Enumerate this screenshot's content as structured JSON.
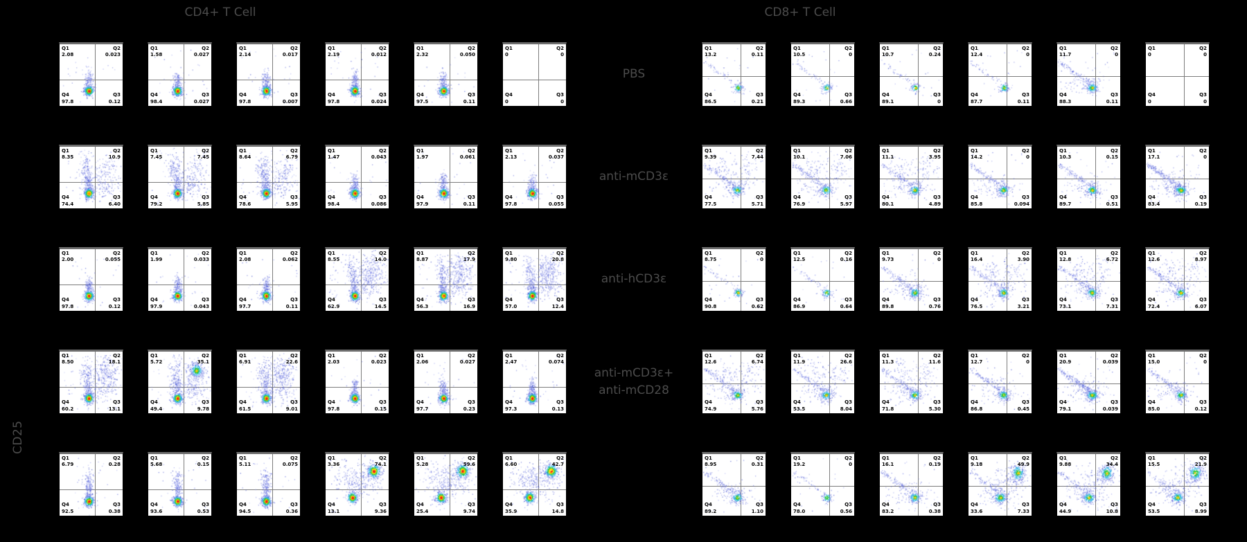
{
  "chart_data": {
    "type": "scatter",
    "subtype": "flow-cytometry-pseudocolor-quadrant-grid",
    "y_axis_label": "CD25",
    "grid": {
      "rows": 5,
      "cols_per_panel": 6,
      "background": "#000000",
      "plot_background": "#ffffff"
    },
    "legend_position": "none",
    "quadrant_label_order": [
      "Q1",
      "Q2",
      "Q4",
      "Q3"
    ],
    "row_labels": [
      {
        "lines": [
          "PBS"
        ]
      },
      {
        "lines": [
          "anti-mCD3ε"
        ]
      },
      {
        "lines": [
          "anti-hCD3ε"
        ]
      },
      {
        "lines": [
          "anti-mCD3ε+",
          "anti-mCD28"
        ]
      },
      {
        "lines": []
      }
    ],
    "colors": {
      "title_text": "#4c4c4c",
      "quadrant_text": "#000000",
      "density_low": "#3f4ccc",
      "density_mid": "#2fc83c",
      "density_high": "#ffe400",
      "density_peak": "#ef1f1b"
    },
    "panels": [
      {
        "title": "CD4+ T Cell",
        "rows": [
          [
            {
              "q1": "2.08",
              "q2": "0.023",
              "q4": "97.8",
              "q3": "0.12",
              "viz": "col"
            },
            {
              "q1": "1.58",
              "q2": "0.027",
              "q4": "98.4",
              "q3": "0.027",
              "viz": "col"
            },
            {
              "q1": "2.14",
              "q2": "0.017",
              "q4": "97.8",
              "q3": "0.007",
              "viz": "col"
            },
            {
              "q1": "2.19",
              "q2": "0.012",
              "q4": "97.8",
              "q3": "0.024",
              "viz": "col"
            },
            {
              "q1": "2.32",
              "q2": "0.050",
              "q4": "97.5",
              "q3": "0.11",
              "viz": "col"
            },
            {
              "q1": "0",
              "q2": "0",
              "q4": "0",
              "q3": "0",
              "viz": "none"
            }
          ],
          [
            {
              "q1": "8.35",
              "q2": "10.9",
              "q4": "74.4",
              "q3": "6.40",
              "viz": "colU"
            },
            {
              "q1": "7.45",
              "q2": "7.45",
              "q4": "79.2",
              "q3": "5.85",
              "viz": "colU"
            },
            {
              "q1": "8.64",
              "q2": "6.79",
              "q4": "78.6",
              "q3": "5.95",
              "viz": "colU"
            },
            {
              "q1": "1.47",
              "q2": "0.043",
              "q4": "98.4",
              "q3": "0.086",
              "viz": "col"
            },
            {
              "q1": "1.97",
              "q2": "0.061",
              "q4": "97.9",
              "q3": "0.11",
              "viz": "col"
            },
            {
              "q1": "2.13",
              "q2": "0.037",
              "q4": "97.8",
              "q3": "0.055",
              "viz": "col"
            }
          ],
          [
            {
              "q1": "2.00",
              "q2": "0.055",
              "q4": "97.8",
              "q3": "0.12",
              "viz": "col"
            },
            {
              "q1": "1.99",
              "q2": "0.033",
              "q4": "97.9",
              "q3": "0.043",
              "viz": "col"
            },
            {
              "q1": "2.08",
              "q2": "0.062",
              "q4": "97.7",
              "q3": "0.11",
              "viz": "col"
            },
            {
              "q1": "8.55",
              "q2": "14.0",
              "q4": "62.9",
              "q3": "14.5",
              "viz": "colU2"
            },
            {
              "q1": "8.87",
              "q2": "17.9",
              "q4": "56.3",
              "q3": "16.9",
              "viz": "colU2"
            },
            {
              "q1": "9.80",
              "q2": "20.8",
              "q4": "57.0",
              "q3": "12.4",
              "viz": "colU2"
            }
          ],
          [
            {
              "q1": "8.50",
              "q2": "18.1",
              "q4": "60.2",
              "q3": "13.1",
              "viz": "colU2"
            },
            {
              "q1": "5.72",
              "q2": "35.1",
              "q4": "49.4",
              "q3": "9.78",
              "viz": "colU2h"
            },
            {
              "q1": "6.91",
              "q2": "22.6",
              "q4": "61.5",
              "q3": "9.01",
              "viz": "colU2"
            },
            {
              "q1": "2.03",
              "q2": "0.023",
              "q4": "97.8",
              "q3": "0.15",
              "viz": "col"
            },
            {
              "q1": "2.06",
              "q2": "0.027",
              "q4": "97.7",
              "q3": "0.23",
              "viz": "col"
            },
            {
              "q1": "2.47",
              "q2": "0.074",
              "q4": "97.3",
              "q3": "0.13",
              "viz": "col"
            }
          ],
          [
            {
              "q1": "6.79",
              "q2": "0.28",
              "q4": "92.5",
              "q3": "0.38",
              "viz": "colT"
            },
            {
              "q1": "5.68",
              "q2": "0.15",
              "q4": "93.6",
              "q3": "0.53",
              "viz": "colT"
            },
            {
              "q1": "5.11",
              "q2": "0.075",
              "q4": "94.5",
              "q3": "0.36",
              "viz": "colT"
            },
            {
              "q1": "3.36",
              "q2": "74.1",
              "q4": "13.1",
              "q3": "9.36",
              "viz": "colQ2"
            },
            {
              "q1": "5.28",
              "q2": "59.6",
              "q4": "25.4",
              "q3": "9.74",
              "viz": "colQ2"
            },
            {
              "q1": "6.60",
              "q2": "42.7",
              "q4": "35.9",
              "q3": "14.8",
              "viz": "colQ2"
            }
          ]
        ]
      },
      {
        "title": "CD8+ T Cell",
        "rows": [
          [
            {
              "q1": "13.2",
              "q2": "0.11",
              "q4": "86.5",
              "q3": "0.21",
              "viz": "smS"
            },
            {
              "q1": "10.5",
              "q2": "0",
              "q4": "89.3",
              "q3": "0.66",
              "viz": "smS"
            },
            {
              "q1": "10.7",
              "q2": "0.24",
              "q4": "89.1",
              "q3": "0",
              "viz": "smS"
            },
            {
              "q1": "12.4",
              "q2": "0",
              "q4": "87.7",
              "q3": "0.11",
              "viz": "smS"
            },
            {
              "q1": "11.7",
              "q2": "0",
              "q4": "88.3",
              "q3": "0.11",
              "viz": "sm"
            },
            {
              "q1": "0",
              "q2": "0",
              "q4": "0",
              "q3": "0",
              "viz": "none"
            }
          ],
          [
            {
              "q1": "9.39",
              "q2": "7.44",
              "q4": "77.5",
              "q3": "5.71",
              "viz": "smU"
            },
            {
              "q1": "10.1",
              "q2": "7.06",
              "q4": "76.9",
              "q3": "5.97",
              "viz": "smU"
            },
            {
              "q1": "11.1",
              "q2": "3.95",
              "q4": "80.1",
              "q3": "4.89",
              "viz": "smU"
            },
            {
              "q1": "14.2",
              "q2": "0",
              "q4": "85.8",
              "q3": "0.094",
              "viz": "sm"
            },
            {
              "q1": "10.3",
              "q2": "0.15",
              "q4": "89.7",
              "q3": "0.51",
              "viz": "sm"
            },
            {
              "q1": "17.1",
              "q2": "0",
              "q4": "83.4",
              "q3": "0.19",
              "viz": "smG"
            }
          ],
          [
            {
              "q1": "8.75",
              "q2": "0",
              "q4": "90.8",
              "q3": "0.62",
              "viz": "smS"
            },
            {
              "q1": "12.5",
              "q2": "0.16",
              "q4": "86.9",
              "q3": "0.64",
              "viz": "smS"
            },
            {
              "q1": "9.73",
              "q2": "0",
              "q4": "89.8",
              "q3": "0.76",
              "viz": "sm"
            },
            {
              "q1": "16.4",
              "q2": "3.90",
              "q4": "76.5",
              "q3": "3.21",
              "viz": "smU"
            },
            {
              "q1": "12.8",
              "q2": "6.72",
              "q4": "73.1",
              "q3": "7.31",
              "viz": "smU"
            },
            {
              "q1": "12.6",
              "q2": "8.97",
              "q4": "72.4",
              "q3": "6.07",
              "viz": "smU"
            }
          ],
          [
            {
              "q1": "12.6",
              "q2": "6.74",
              "q4": "74.9",
              "q3": "5.76",
              "viz": "smU"
            },
            {
              "q1": "11.9",
              "q2": "26.6",
              "q4": "53.5",
              "q3": "8.04",
              "viz": "smU"
            },
            {
              "q1": "11.3",
              "q2": "11.6",
              "q4": "71.8",
              "q3": "5.30",
              "viz": "smU"
            },
            {
              "q1": "12.7",
              "q2": "0",
              "q4": "86.8",
              "q3": "0.45",
              "viz": "sm"
            },
            {
              "q1": "20.9",
              "q2": "0.039",
              "q4": "79.1",
              "q3": "0.039",
              "viz": "smG"
            },
            {
              "q1": "15.0",
              "q2": "0",
              "q4": "85.0",
              "q3": "0.12",
              "viz": "sm"
            }
          ],
          [
            {
              "q1": "8.95",
              "q2": "0.31",
              "q4": "89.2",
              "q3": "1.10",
              "viz": "sm"
            },
            {
              "q1": "19.2",
              "q2": "0",
              "q4": "78.0",
              "q3": "0.56",
              "viz": "smS"
            },
            {
              "q1": "16.1",
              "q2": "0.19",
              "q4": "83.2",
              "q3": "0.38",
              "viz": "sm"
            },
            {
              "q1": "9.18",
              "q2": "49.9",
              "q4": "33.6",
              "q3": "7.33",
              "viz": "smQ2"
            },
            {
              "q1": "9.88",
              "q2": "34.4",
              "q4": "44.9",
              "q3": "10.8",
              "viz": "smQ2"
            },
            {
              "q1": "15.5",
              "q2": "21.9",
              "q4": "53.5",
              "q3": "8.99",
              "viz": "smQ2"
            }
          ]
        ]
      }
    ]
  }
}
